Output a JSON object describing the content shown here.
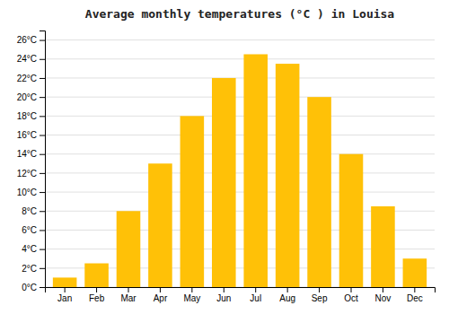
{
  "chart_data": {
    "type": "bar",
    "title": "Average monthly temperatures (°C ) in Louisa",
    "categories": [
      "Jan",
      "Feb",
      "Mar",
      "Apr",
      "May",
      "Jun",
      "Jul",
      "Aug",
      "Sep",
      "Oct",
      "Nov",
      "Dec"
    ],
    "values": [
      1.0,
      2.5,
      8.0,
      13.0,
      18.0,
      22.0,
      24.5,
      23.5,
      20.0,
      14.0,
      8.5,
      3.0
    ],
    "color": "#FFC107",
    "ylim": [
      0,
      27
    ],
    "yticks": [
      {
        "value": 0,
        "label": "0°C"
      },
      {
        "value": 2,
        "label": "2°C"
      },
      {
        "value": 4,
        "label": "4°C"
      },
      {
        "value": 6,
        "label": "6°C"
      },
      {
        "value": 8,
        "label": "8°C"
      },
      {
        "value": 10,
        "label": "10°C"
      },
      {
        "value": 12,
        "label": "12°C"
      },
      {
        "value": 14,
        "label": "14°C"
      },
      {
        "value": 16,
        "label": "16°C"
      },
      {
        "value": 18,
        "label": "18°C"
      },
      {
        "value": 20,
        "label": "20°C"
      },
      {
        "value": 22,
        "label": "22°C"
      },
      {
        "value": 24,
        "label": "24°C"
      },
      {
        "value": 26,
        "label": "26°C"
      }
    ],
    "grid": true
  }
}
